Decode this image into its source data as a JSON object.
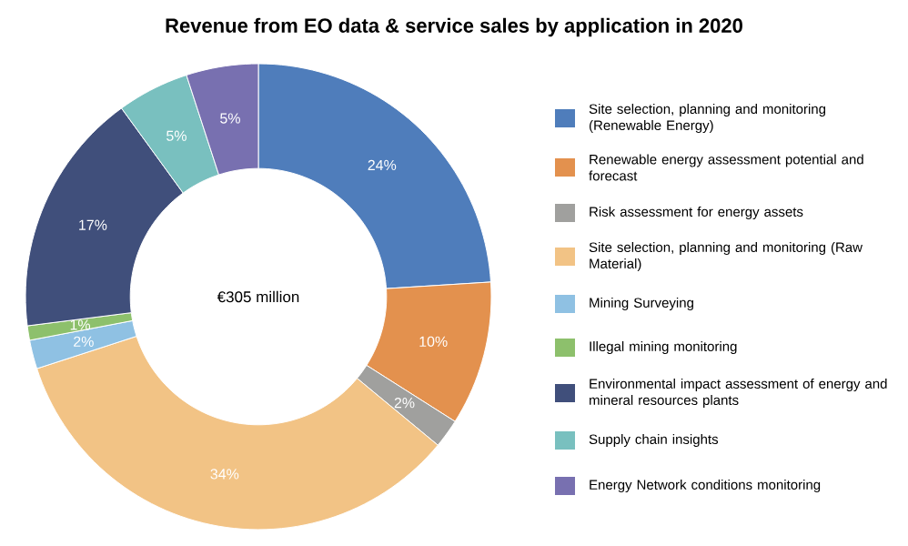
{
  "chart_data": {
    "type": "donut",
    "title": "Revenue from EO data & service sales by application in 2020",
    "categories": [
      "Site selection, planning and monitoring (Renewable Energy)",
      "Renewable energy assessment potential and forecast",
      "Risk assessment for energy assets",
      "Site selection, planning and monitoring (Raw Material)",
      "Mining Surveying",
      "Illegal mining monitoring",
      "Environmental impact assessment of energy and mineral resources plants",
      "Supply chain insights",
      "Energy Network conditions monitoring"
    ],
    "values": [
      24,
      10,
      2,
      34,
      2,
      1,
      17,
      5,
      5
    ],
    "value_labels": [
      "24%",
      "10%",
      "2%",
      "34%",
      "2%",
      "1%",
      "17%",
      "5%",
      "5%"
    ],
    "colors": [
      "#4f7dbb",
      "#e3914e",
      "#a0a09e",
      "#f2c385",
      "#8fc1e3",
      "#8dc06c",
      "#404f7b",
      "#79c0bf",
      "#7870b0"
    ],
    "annotations": [
      "€305 million"
    ],
    "legend": "right"
  }
}
